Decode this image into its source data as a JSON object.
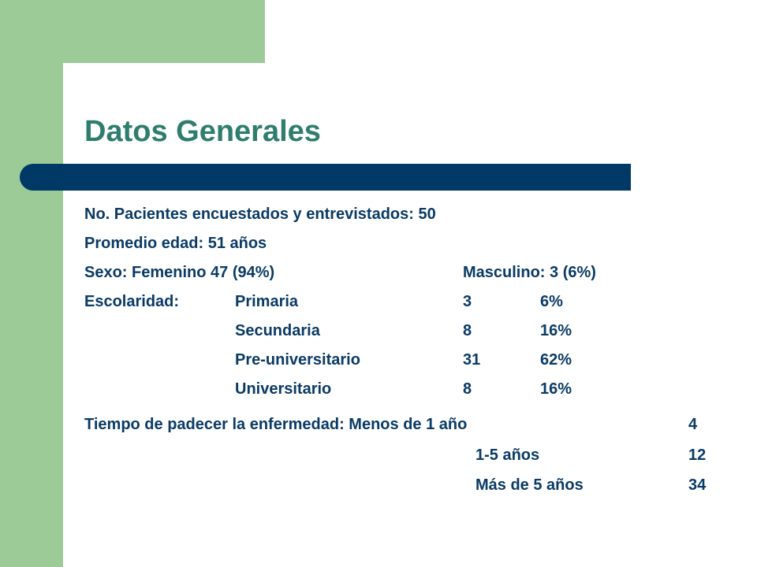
{
  "slide": {
    "title": "Datos Generales",
    "accent_colors": {
      "green": "#9ccb98",
      "navy": "#003866",
      "title": "#2e7d6e",
      "text": "#0a3a66"
    }
  },
  "lines": {
    "pacientes": "No. Pacientes encuestados y entrevistados: 50",
    "edad": "Promedio edad: 51 años",
    "sexo_f": "Sexo: Femenino 47 (94%)",
    "sexo_m": "Masculino: 3 (6%)"
  },
  "escolaridad": {
    "label": "Escolaridad:",
    "rows": [
      {
        "nivel": "Primaria",
        "n": "3",
        "pct": "6%"
      },
      {
        "nivel": "Secundaria",
        "n": "8",
        "pct": "16%"
      },
      {
        "nivel": "Pre-universitario",
        "n": "31",
        "pct": "62%"
      },
      {
        "nivel": "Universitario",
        "n": "8",
        "pct": "16%"
      }
    ]
  },
  "tiempo": {
    "label": "Tiempo de padecer la enfermedad: Menos de 1 año",
    "first_n": "4",
    "rows": [
      {
        "rango": "1-5 años",
        "n": "12"
      },
      {
        "rango": "Más de 5 años",
        "n": "34"
      }
    ]
  }
}
